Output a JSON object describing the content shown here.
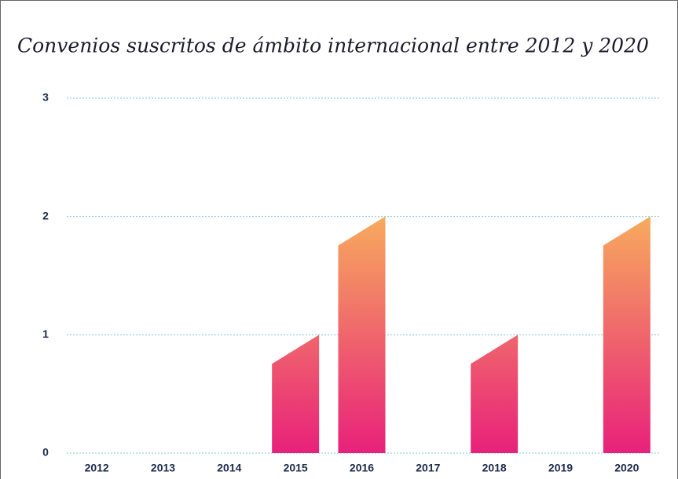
{
  "chart_data": {
    "type": "bar",
    "title": "Convenios suscritos de ámbito internacional entre 2012 y 2020",
    "categories": [
      "2012",
      "2013",
      "2014",
      "2015",
      "2016",
      "2017",
      "2018",
      "2019",
      "2020"
    ],
    "values": [
      0,
      0,
      0,
      1,
      2,
      0,
      1,
      0,
      2
    ],
    "colors": [
      "#e8217a",
      "#f7ab5e"
    ],
    "ylim": [
      0,
      3
    ],
    "yticks": [
      0,
      1,
      2,
      3
    ],
    "grid": true
  }
}
